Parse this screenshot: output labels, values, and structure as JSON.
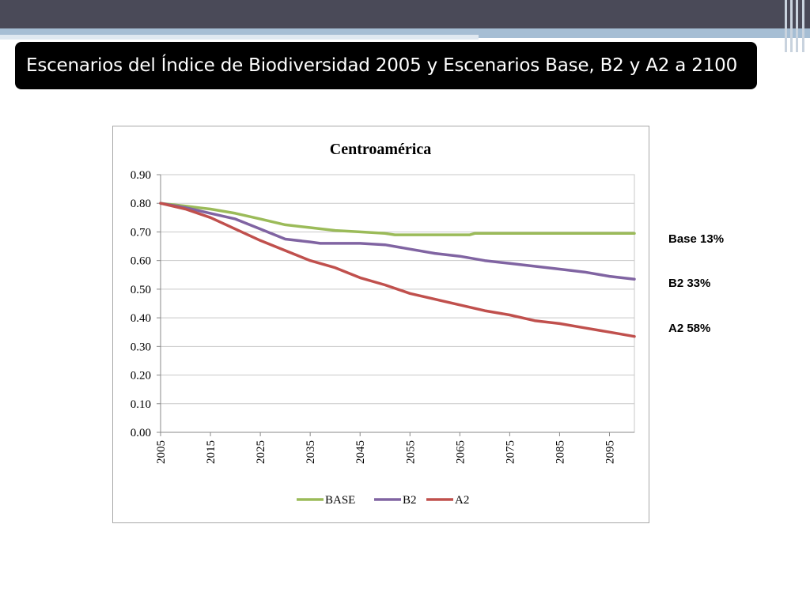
{
  "slide": {
    "title": "Escenarios del Índice de Biodiversidad 2005 y Escenarios Base, B2 y A2 a 2100"
  },
  "annotations": [
    {
      "text": "Base 13%"
    },
    {
      "text": "B2 33%"
    },
    {
      "text": "A2 58%"
    }
  ],
  "chart_data": {
    "type": "line",
    "title": "Centroamérica",
    "xlabel": "",
    "ylabel": "",
    "xlim": [
      2005,
      2100
    ],
    "ylim": [
      0,
      0.9
    ],
    "y_ticks": [
      "0.00",
      "0.10",
      "0.20",
      "0.30",
      "0.40",
      "0.50",
      "0.60",
      "0.70",
      "0.80",
      "0.90"
    ],
    "x_ticks": [
      "2005",
      "2015",
      "2025",
      "2035",
      "2045",
      "2055",
      "2065",
      "2075",
      "2085",
      "2095"
    ],
    "grid": "horizontal",
    "legend_position": "bottom",
    "series": [
      {
        "name": "BASE",
        "color": "#9bbb59",
        "x": [
          2005,
          2010,
          2015,
          2020,
          2025,
          2030,
          2035,
          2040,
          2045,
          2050,
          2052,
          2060,
          2067,
          2068,
          2075,
          2085,
          2095,
          2100
        ],
        "y": [
          0.8,
          0.79,
          0.78,
          0.765,
          0.745,
          0.725,
          0.715,
          0.705,
          0.7,
          0.695,
          0.69,
          0.69,
          0.69,
          0.695,
          0.695,
          0.695,
          0.695,
          0.695
        ]
      },
      {
        "name": "B2",
        "color": "#8064a2",
        "x": [
          2005,
          2010,
          2015,
          2020,
          2025,
          2030,
          2035,
          2037,
          2040,
          2045,
          2050,
          2055,
          2060,
          2065,
          2070,
          2075,
          2080,
          2085,
          2090,
          2095,
          2100
        ],
        "y": [
          0.8,
          0.785,
          0.765,
          0.745,
          0.71,
          0.675,
          0.665,
          0.66,
          0.66,
          0.66,
          0.655,
          0.64,
          0.625,
          0.615,
          0.6,
          0.59,
          0.58,
          0.57,
          0.56,
          0.545,
          0.535
        ]
      },
      {
        "name": "A2",
        "color": "#c0504d",
        "x": [
          2005,
          2010,
          2015,
          2020,
          2025,
          2030,
          2035,
          2040,
          2045,
          2050,
          2055,
          2060,
          2065,
          2070,
          2075,
          2080,
          2085,
          2090,
          2095,
          2100
        ],
        "y": [
          0.8,
          0.78,
          0.75,
          0.71,
          0.67,
          0.635,
          0.6,
          0.575,
          0.54,
          0.515,
          0.485,
          0.465,
          0.445,
          0.425,
          0.41,
          0.39,
          0.38,
          0.365,
          0.35,
          0.335
        ]
      }
    ]
  }
}
